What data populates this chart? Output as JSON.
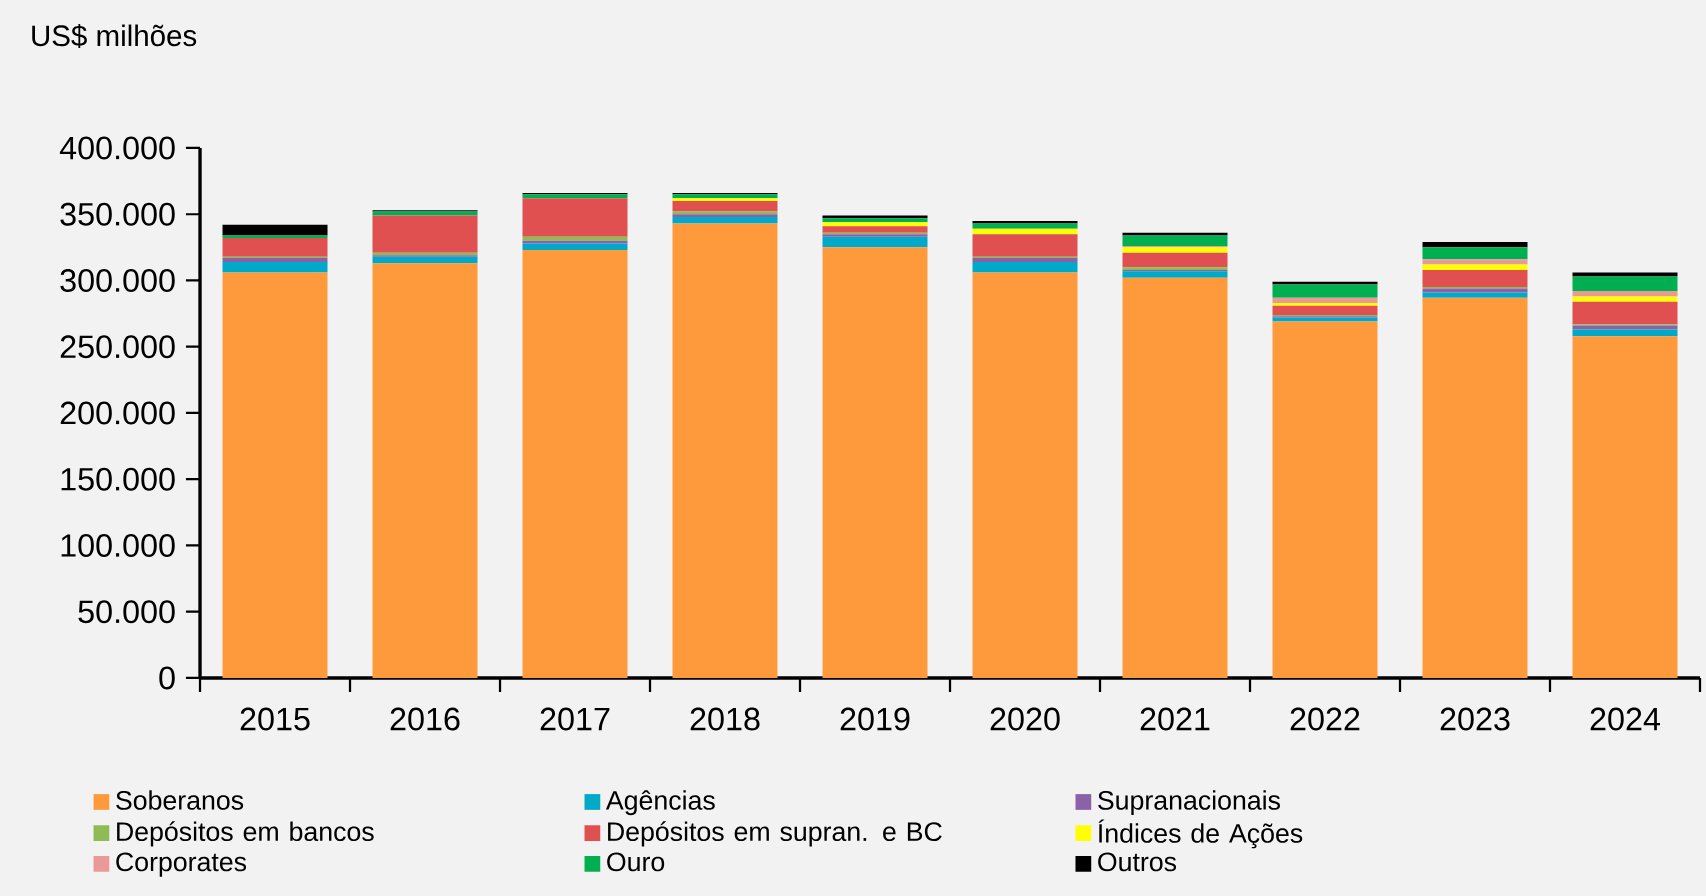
{
  "chart_data": {
    "type": "bar",
    "stacked": true,
    "ylabel": "US$ milhões",
    "categories": [
      "2015",
      "2016",
      "2017",
      "2018",
      "2019",
      "2020",
      "2021",
      "2022",
      "2023",
      "2024"
    ],
    "series": [
      {
        "name": "Soberanos",
        "color": "#ff9a3c",
        "values": [
          306000,
          313000,
          323000,
          343000,
          325000,
          306000,
          302000,
          269000,
          287000,
          258000
        ]
      },
      {
        "name": "Agências",
        "color": "#00a9c8",
        "values": [
          8000,
          5000,
          5000,
          5000,
          8000,
          8000,
          5000,
          3000,
          4000,
          5000
        ]
      },
      {
        "name": "Supranacionais",
        "color": "#8b62a8",
        "values": [
          3000,
          1000,
          2000,
          2000,
          2000,
          3000,
          1000,
          1000,
          3000,
          3000
        ]
      },
      {
        "name": "Depósitos em bancos",
        "color": "#8fbb55",
        "values": [
          1000,
          2000,
          3000,
          2000,
          1000,
          1000,
          2000,
          1000,
          1000,
          1000
        ]
      },
      {
        "name": "Depósitos em supran. e BC",
        "color": "#e05050",
        "values": [
          14000,
          28000,
          29000,
          8000,
          5000,
          17000,
          11000,
          7000,
          13000,
          17000
        ]
      },
      {
        "name": "Índices de Ações",
        "color": "#ffff00",
        "values": [
          0,
          0,
          0,
          2000,
          3000,
          4000,
          4000,
          2000,
          4000,
          4000
        ]
      },
      {
        "name": "Corporates",
        "color": "#e99a96",
        "values": [
          0,
          0,
          0,
          0,
          0,
          0,
          1000,
          4000,
          4000,
          4000
        ]
      },
      {
        "name": "Ouro",
        "color": "#00b050",
        "values": [
          2000,
          3000,
          3000,
          3000,
          3000,
          4000,
          8000,
          10000,
          9000,
          11000
        ]
      },
      {
        "name": "Outros",
        "color": "#000000",
        "values": [
          8000,
          1000,
          1000,
          1000,
          2000,
          2000,
          2000,
          2000,
          4000,
          3000
        ]
      }
    ],
    "ylim": [
      0,
      400000
    ],
    "yticks": [
      {
        "value": 0,
        "label": "0"
      },
      {
        "value": 50000,
        "label": "50.000"
      },
      {
        "value": 100000,
        "label": "100.000"
      },
      {
        "value": 150000,
        "label": "150.000"
      },
      {
        "value": 200000,
        "label": "200.000"
      },
      {
        "value": 250000,
        "label": "250.000"
      },
      {
        "value": 300000,
        "label": "300.000"
      },
      {
        "value": 350000,
        "label": "350.000"
      },
      {
        "value": 400000,
        "label": "400.000"
      }
    ],
    "legend": "bottom"
  }
}
